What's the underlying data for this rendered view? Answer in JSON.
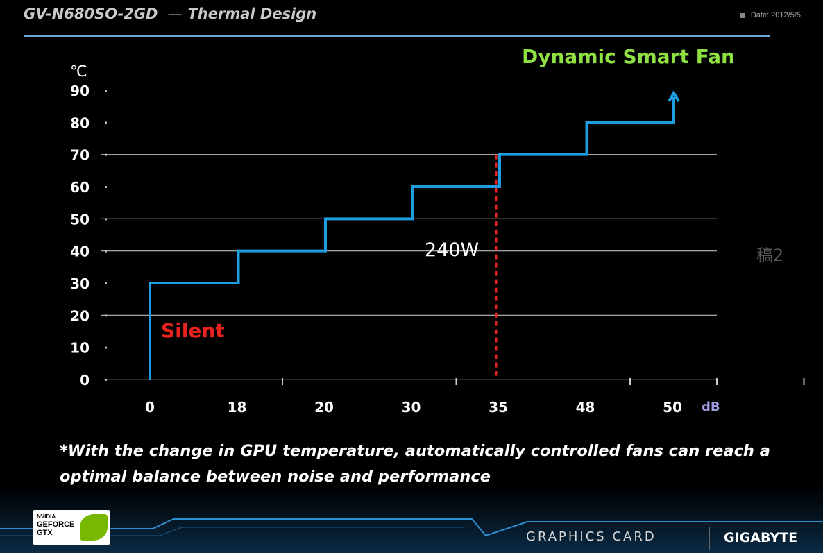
{
  "header": {
    "title": "GV-N680SO-2GD",
    "separator": "—",
    "subtitle": "Thermal Design",
    "date": "Date: 2012/5/5"
  },
  "chart_data": {
    "type": "line",
    "title": "Dynamic Smart Fan",
    "ylabel": "℃",
    "xlabel": "dB",
    "y_ticks": [
      "0",
      "10",
      "20",
      "30",
      "40",
      "50",
      "60",
      "70",
      "80",
      "90"
    ],
    "ylim": [
      0,
      90
    ],
    "categories": [
      "0",
      "18",
      "20",
      "30",
      "35",
      "48",
      "50"
    ],
    "gridlines_y": [
      20,
      40,
      50,
      70
    ],
    "series": [
      {
        "steps": [
          {
            "from": "0",
            "to": "18",
            "value": 30
          },
          {
            "from": "18",
            "to": "20",
            "value": 40
          },
          {
            "from": "20",
            "to": "30",
            "value": 50
          },
          {
            "from": "30",
            "to": "35",
            "value": 60
          },
          {
            "from": "35",
            "to": "48",
            "value": 70
          },
          {
            "from": "48",
            "to": "50",
            "value": 80
          }
        ],
        "start_value": 0,
        "end_value": 90,
        "color": "#1e9ee0"
      }
    ],
    "annotations": [
      {
        "text": "Silent",
        "color": "#e8231f"
      },
      {
        "text": "240W",
        "color": "#ffffff"
      }
    ],
    "marker_line": {
      "at": "35",
      "color": "#e8231f",
      "style": "dashed"
    },
    "title_color": "#8ee043"
  },
  "footnote": {
    "line1": "*With the change in GPU temperature, automatically controlled fans can reach a",
    "line2": "optimal balance between noise and performance"
  },
  "side_mark": "稿2",
  "footer": {
    "nvidia_small": "NVIDIA",
    "nvidia_line1": "GEFORCE",
    "nvidia_line2": "GTX",
    "graphics_card": "GRAPHICS CARD",
    "brand": "GIGABYTE"
  }
}
